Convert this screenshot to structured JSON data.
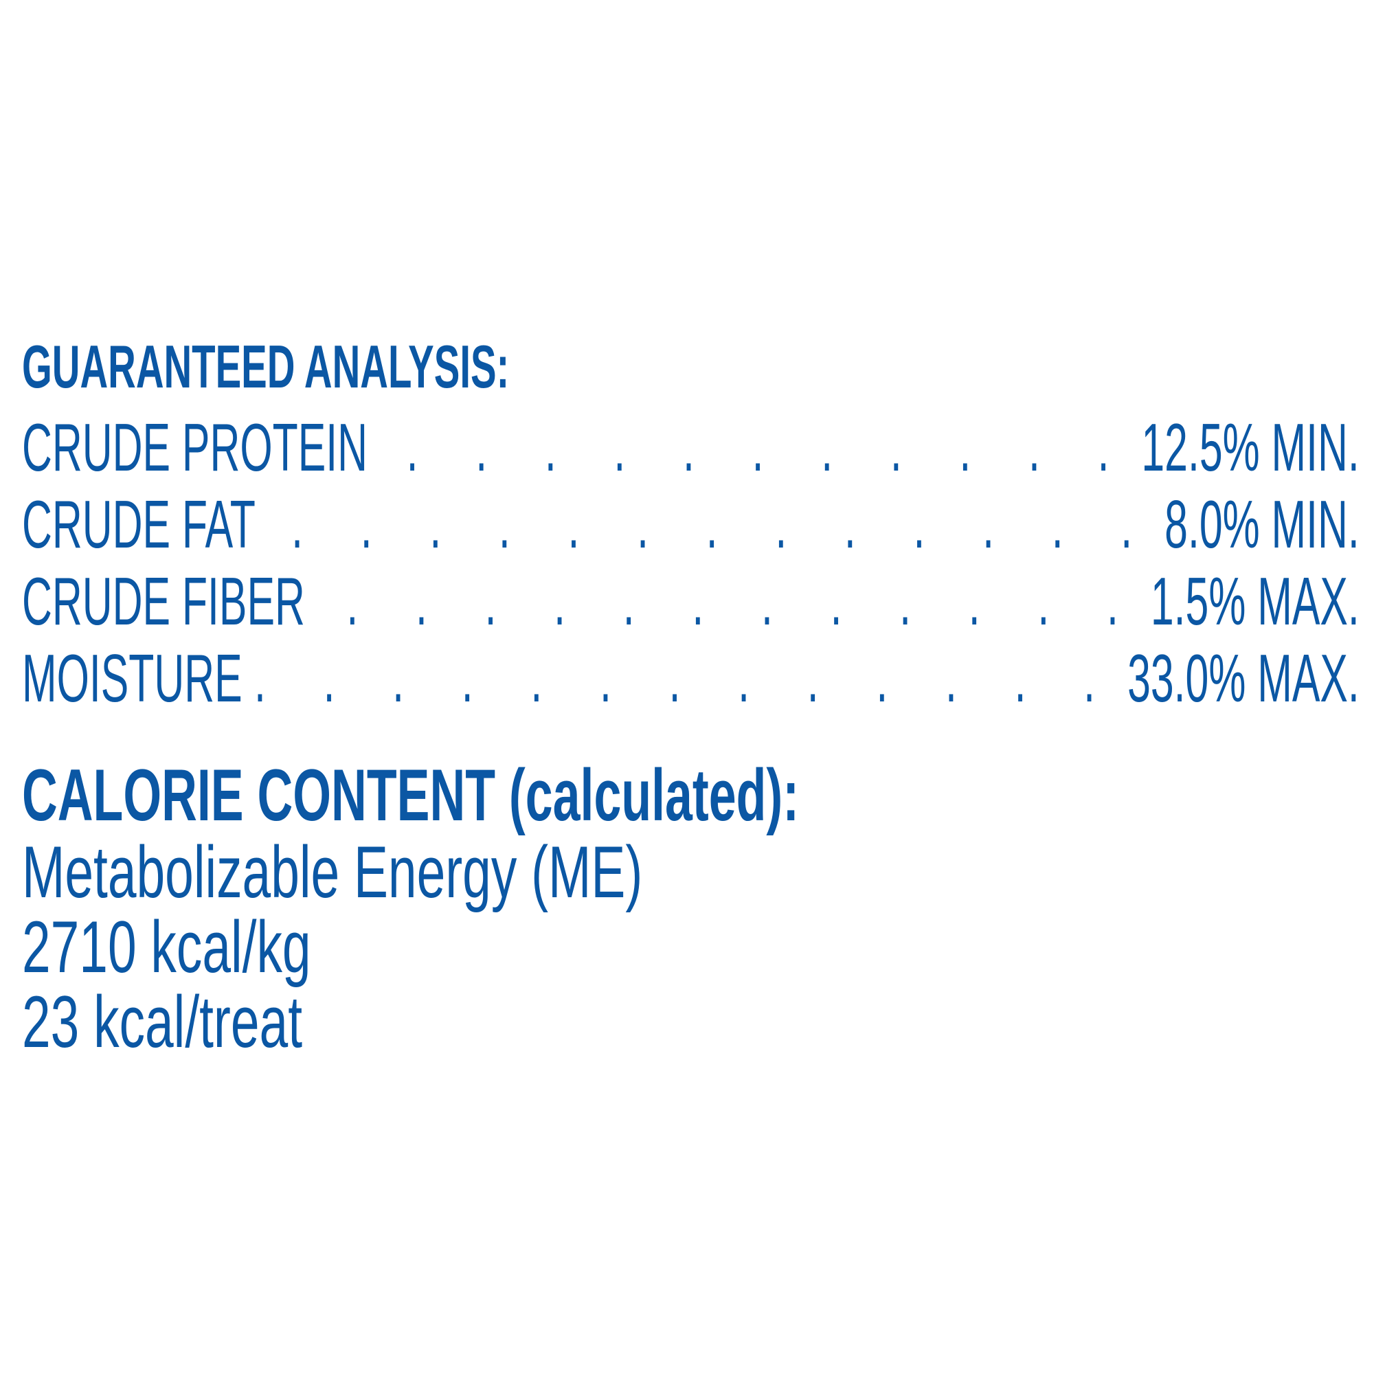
{
  "guaranteed_analysis": {
    "heading": "GUARANTEED ANALYSIS:",
    "rows": [
      {
        "label": "CRUDE PROTEIN",
        "value": "12.5% MIN."
      },
      {
        "label": "CRUDE FAT",
        "value": "8.0% MIN."
      },
      {
        "label": "CRUDE FIBER",
        "value": "1.5% MAX."
      },
      {
        "label": "MOISTURE",
        "value": "33.0% MAX."
      }
    ]
  },
  "calorie_content": {
    "heading": "CALORIE CONTENT (calculated):",
    "lines": [
      "Metabolizable Energy (ME)",
      "2710 kcal/kg",
      "23 kcal/treat"
    ]
  },
  "colors": {
    "text": "#0b57a4",
    "background": "#ffffff"
  }
}
